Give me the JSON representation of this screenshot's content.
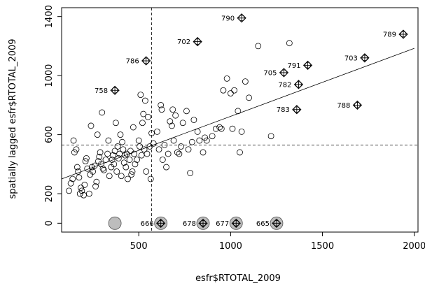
{
  "chart_data": {
    "type": "scatter",
    "title": "",
    "xlabel": "esfr$RTOTAL_2009",
    "ylabel": "spatially lagged esfr$RTOTAL_2009",
    "xlim": [
      80,
      2020
    ],
    "ylim": [
      -60,
      1460
    ],
    "xticks": [
      "500",
      "1000",
      "1500",
      "2000"
    ],
    "yticks": [
      "0",
      "200",
      "600",
      "1000",
      "1400"
    ],
    "grid": false,
    "legend": "none",
    "mean_x": 570,
    "mean_y": 530,
    "regression_line": [
      {
        "x": 80,
        "y": 300
      },
      {
        "x": 2000,
        "y": 1185
      }
    ],
    "points": [
      {
        "x": 120,
        "y": 220
      },
      {
        "x": 130,
        "y": 270
      },
      {
        "x": 140,
        "y": 300
      },
      {
        "x": 145,
        "y": 560
      },
      {
        "x": 150,
        "y": 480
      },
      {
        "x": 160,
        "y": 500
      },
      {
        "x": 165,
        "y": 380
      },
      {
        "x": 170,
        "y": 350
      },
      {
        "x": 175,
        "y": 310
      },
      {
        "x": 180,
        "y": 200
      },
      {
        "x": 185,
        "y": 240
      },
      {
        "x": 190,
        "y": 220
      },
      {
        "x": 200,
        "y": 190
      },
      {
        "x": 205,
        "y": 260
      },
      {
        "x": 210,
        "y": 420
      },
      {
        "x": 215,
        "y": 440
      },
      {
        "x": 220,
        "y": 370
      },
      {
        "x": 230,
        "y": 200
      },
      {
        "x": 235,
        "y": 330
      },
      {
        "x": 240,
        "y": 660
      },
      {
        "x": 245,
        "y": 380
      },
      {
        "x": 250,
        "y": 350
      },
      {
        "x": 260,
        "y": 390
      },
      {
        "x": 265,
        "y": 250
      },
      {
        "x": 270,
        "y": 280
      },
      {
        "x": 275,
        "y": 600
      },
      {
        "x": 280,
        "y": 420
      },
      {
        "x": 285,
        "y": 450
      },
      {
        "x": 290,
        "y": 480
      },
      {
        "x": 295,
        "y": 400
      },
      {
        "x": 300,
        "y": 750
      },
      {
        "x": 305,
        "y": 370
      },
      {
        "x": 310,
        "y": 360
      },
      {
        "x": 320,
        "y": 430
      },
      {
        "x": 330,
        "y": 470
      },
      {
        "x": 335,
        "y": 560
      },
      {
        "x": 340,
        "y": 320
      },
      {
        "x": 350,
        "y": 380
      },
      {
        "x": 355,
        "y": 430
      },
      {
        "x": 360,
        "y": 460
      },
      {
        "x": 365,
        "y": 400
      },
      {
        "x": 370,
        "y": 490
      },
      {
        "x": 375,
        "y": 680
      },
      {
        "x": 380,
        "y": 350
      },
      {
        "x": 385,
        "y": 520
      },
      {
        "x": 390,
        "y": 440
      },
      {
        "x": 395,
        "y": 470
      },
      {
        "x": 400,
        "y": 600
      },
      {
        "x": 405,
        "y": 320
      },
      {
        "x": 410,
        "y": 550
      },
      {
        "x": 415,
        "y": 500
      },
      {
        "x": 420,
        "y": 410
      },
      {
        "x": 425,
        "y": 460
      },
      {
        "x": 430,
        "y": 380
      },
      {
        "x": 435,
        "y": 470
      },
      {
        "x": 440,
        "y": 300
      },
      {
        "x": 450,
        "y": 430
      },
      {
        "x": 455,
        "y": 490
      },
      {
        "x": 460,
        "y": 330
      },
      {
        "x": 465,
        "y": 350
      },
      {
        "x": 470,
        "y": 650
      },
      {
        "x": 475,
        "y": 470
      },
      {
        "x": 480,
        "y": 400
      },
      {
        "x": 490,
        "y": 430
      },
      {
        "x": 500,
        "y": 560
      },
      {
        "x": 505,
        "y": 520
      },
      {
        "x": 510,
        "y": 870
      },
      {
        "x": 515,
        "y": 460
      },
      {
        "x": 520,
        "y": 680
      },
      {
        "x": 525,
        "y": 740
      },
      {
        "x": 530,
        "y": 500
      },
      {
        "x": 535,
        "y": 830
      },
      {
        "x": 540,
        "y": 350
      },
      {
        "x": 545,
        "y": 470
      },
      {
        "x": 550,
        "y": 720
      },
      {
        "x": 560,
        "y": 520
      },
      {
        "x": 565,
        "y": 300
      },
      {
        "x": 570,
        "y": 610
      },
      {
        "x": 580,
        "y": 540
      },
      {
        "x": 600,
        "y": 620
      },
      {
        "x": 610,
        "y": 500
      },
      {
        "x": 620,
        "y": 800
      },
      {
        "x": 625,
        "y": 770
      },
      {
        "x": 630,
        "y": 430
      },
      {
        "x": 640,
        "y": 530
      },
      {
        "x": 650,
        "y": 380
      },
      {
        "x": 660,
        "y": 470
      },
      {
        "x": 670,
        "y": 690
      },
      {
        "x": 680,
        "y": 660
      },
      {
        "x": 685,
        "y": 770
      },
      {
        "x": 690,
        "y": 560
      },
      {
        "x": 700,
        "y": 730
      },
      {
        "x": 710,
        "y": 480
      },
      {
        "x": 720,
        "y": 470
      },
      {
        "x": 730,
        "y": 520
      },
      {
        "x": 740,
        "y": 680
      },
      {
        "x": 760,
        "y": 760
      },
      {
        "x": 770,
        "y": 500
      },
      {
        "x": 780,
        "y": 340
      },
      {
        "x": 790,
        "y": 550
      },
      {
        "x": 800,
        "y": 700
      },
      {
        "x": 820,
        "y": 620
      },
      {
        "x": 830,
        "y": 560
      },
      {
        "x": 850,
        "y": 480
      },
      {
        "x": 860,
        "y": 580
      },
      {
        "x": 870,
        "y": 560
      },
      {
        "x": 900,
        "y": 590
      },
      {
        "x": 920,
        "y": 640
      },
      {
        "x": 940,
        "y": 650
      },
      {
        "x": 950,
        "y": 640
      },
      {
        "x": 960,
        "y": 900
      },
      {
        "x": 980,
        "y": 980
      },
      {
        "x": 1000,
        "y": 880
      },
      {
        "x": 1010,
        "y": 640
      },
      {
        "x": 1020,
        "y": 900
      },
      {
        "x": 1040,
        "y": 760
      },
      {
        "x": 1050,
        "y": 480
      },
      {
        "x": 1060,
        "y": 620
      },
      {
        "x": 1080,
        "y": 960
      },
      {
        "x": 1100,
        "y": 850
      },
      {
        "x": 1150,
        "y": 1200
      },
      {
        "x": 1220,
        "y": 590
      },
      {
        "x": 1320,
        "y": 1220
      }
    ],
    "labeled_points": [
      {
        "label": "790",
        "x": 1060,
        "y": 1390
      },
      {
        "label": "789",
        "x": 1940,
        "y": 1280
      },
      {
        "label": "702",
        "x": 820,
        "y": 1230
      },
      {
        "label": "703",
        "x": 1730,
        "y": 1120
      },
      {
        "label": "786",
        "x": 540,
        "y": 1100
      },
      {
        "label": "791",
        "x": 1420,
        "y": 1070
      },
      {
        "label": "705",
        "x": 1290,
        "y": 1020
      },
      {
        "label": "782",
        "x": 1370,
        "y": 940
      },
      {
        "label": "758",
        "x": 370,
        "y": 900
      },
      {
        "label": "788",
        "x": 1690,
        "y": 800
      },
      {
        "label": "783",
        "x": 1360,
        "y": 770
      }
    ],
    "zero_points": [
      {
        "label": "",
        "x": 370,
        "y": 0
      },
      {
        "label": "666",
        "x": 620,
        "y": 0
      },
      {
        "label": "678",
        "x": 850,
        "y": 0
      },
      {
        "label": "677",
        "x": 1030,
        "y": 0
      },
      {
        "label": "665",
        "x": 1250,
        "y": 0
      }
    ]
  }
}
